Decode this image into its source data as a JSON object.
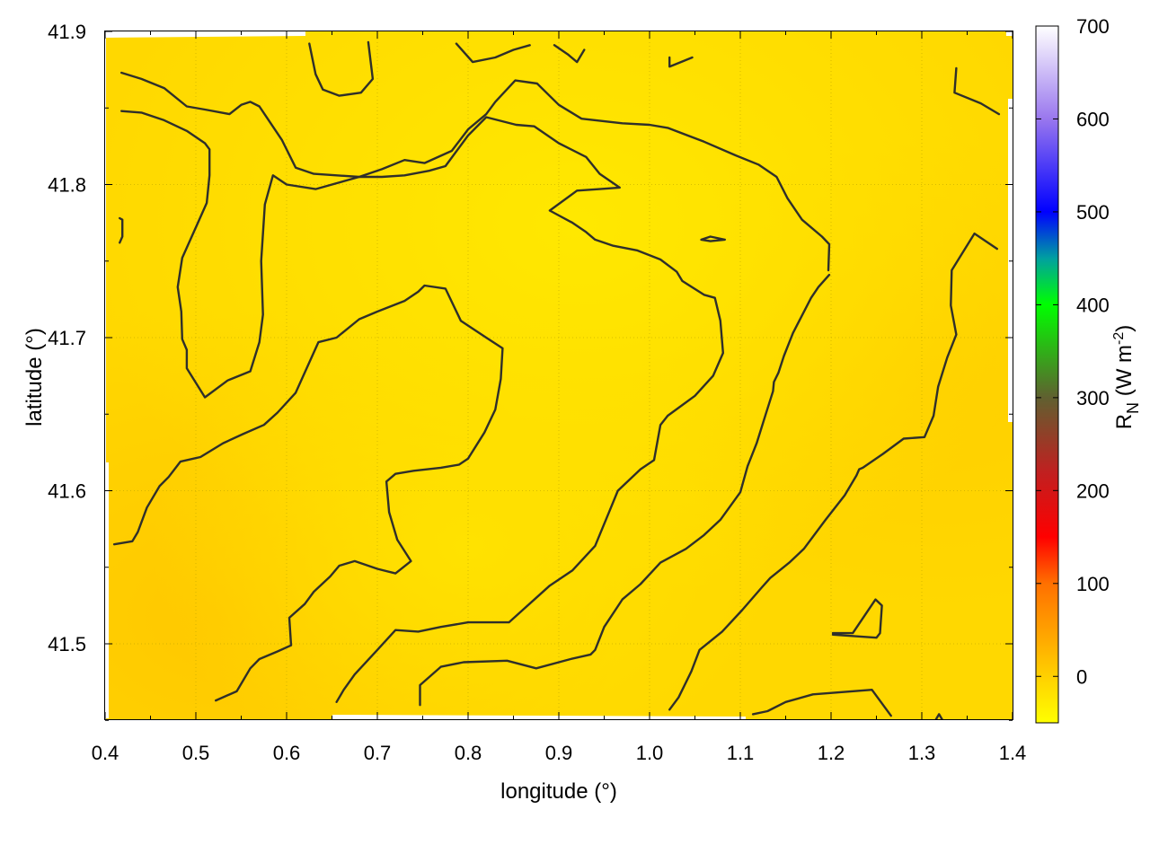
{
  "chart_data": {
    "type": "heatmap",
    "xlabel": "longitude (°)",
    "ylabel": "latitude (°)",
    "xlim": [
      0.4,
      1.4
    ],
    "ylim": [
      41.45,
      41.9
    ],
    "x_ticks": [
      "0.4",
      "0.5",
      "0.6",
      "0.7",
      "0.8",
      "0.9",
      "1.0",
      "1.1",
      "1.2",
      "1.3",
      "1.4"
    ],
    "y_ticks": [
      "41.5",
      "41.6",
      "41.7",
      "41.8",
      "41.9"
    ],
    "grid": true,
    "colorbar": {
      "label_main": "R",
      "label_sub": "N",
      "label_units_open": " (W m",
      "label_units_exp": "-2",
      "label_units_close": ")",
      "range": [
        -50,
        700
      ],
      "ticks": [
        "0",
        "100",
        "200",
        "300",
        "400",
        "500",
        "600",
        "700"
      ],
      "colors": [
        {
          "v": -50,
          "c": "#ffff00"
        },
        {
          "v": 0,
          "c": "#ffd000"
        },
        {
          "v": 50,
          "c": "#ffa000"
        },
        {
          "v": 100,
          "c": "#ff7000"
        },
        {
          "v": 150,
          "c": "#ff0000"
        },
        {
          "v": 220,
          "c": "#c02020"
        },
        {
          "v": 300,
          "c": "#606030"
        },
        {
          "v": 400,
          "c": "#00ff00"
        },
        {
          "v": 450,
          "c": "#00a0a0"
        },
        {
          "v": 500,
          "c": "#0000ff"
        },
        {
          "v": 600,
          "c": "#9977ee"
        },
        {
          "v": 700,
          "c": "#ffffff"
        }
      ]
    },
    "field_colors": {
      "high": "#ffe800",
      "low": "#ffd000"
    },
    "contours": [
      [
        [
          0.418,
          41.873
        ],
        [
          0.44,
          41.869
        ],
        [
          0.465,
          41.863
        ],
        [
          0.49,
          41.851
        ],
        [
          0.51,
          41.849
        ],
        [
          0.537,
          41.846
        ],
        [
          0.55,
          41.852
        ],
        [
          0.56,
          41.854
        ],
        [
          0.57,
          41.851
        ],
        [
          0.595,
          41.829
        ],
        [
          0.61,
          41.811
        ],
        [
          0.63,
          41.807
        ],
        [
          0.68,
          41.805
        ],
        [
          0.705,
          41.81
        ],
        [
          0.73,
          41.816
        ],
        [
          0.752,
          41.814
        ],
        [
          0.782,
          41.822
        ],
        [
          0.8,
          41.836
        ],
        [
          0.82,
          41.846
        ],
        [
          0.83,
          41.854
        ],
        [
          0.852,
          41.868
        ],
        [
          0.876,
          41.866
        ],
        [
          0.9,
          41.852
        ],
        [
          0.925,
          41.843
        ],
        [
          0.97,
          41.84
        ],
        [
          1.0,
          41.839
        ],
        [
          1.02,
          41.837
        ],
        [
          1.06,
          41.828
        ],
        [
          1.095,
          41.819
        ],
        [
          1.12,
          41.813
        ],
        [
          1.14,
          41.805
        ],
        [
          1.152,
          41.791
        ],
        [
          1.168,
          41.777
        ],
        [
          1.19,
          41.766
        ],
        [
          1.198,
          41.761
        ],
        [
          1.197,
          41.744
        ]
      ],
      [
        [
          0.418,
          41.848
        ],
        [
          0.44,
          41.847
        ],
        [
          0.465,
          41.842
        ],
        [
          0.49,
          41.835
        ],
        [
          0.51,
          41.827
        ],
        [
          0.515,
          41.823
        ],
        [
          0.515,
          41.806
        ],
        [
          0.512,
          41.788
        ],
        [
          0.5,
          41.772
        ],
        [
          0.485,
          41.752
        ],
        [
          0.48,
          41.733
        ],
        [
          0.484,
          41.717
        ],
        [
          0.485,
          41.699
        ],
        [
          0.49,
          41.692
        ],
        [
          0.49,
          41.68
        ],
        [
          0.51,
          41.661
        ],
        [
          0.535,
          41.672
        ],
        [
          0.56,
          41.678
        ],
        [
          0.57,
          41.697
        ],
        [
          0.574,
          41.715
        ],
        [
          0.572,
          41.75
        ],
        [
          0.576,
          41.787
        ],
        [
          0.585,
          41.806
        ],
        [
          0.6,
          41.8
        ],
        [
          0.632,
          41.797
        ],
        [
          0.68,
          41.805
        ],
        [
          0.705,
          41.805
        ],
        [
          0.73,
          41.806
        ],
        [
          0.757,
          41.809
        ],
        [
          0.775,
          41.812
        ],
        [
          0.8,
          41.832
        ],
        [
          0.82,
          41.844
        ],
        [
          0.853,
          41.839
        ],
        [
          0.873,
          41.838
        ],
        [
          0.9,
          41.827
        ],
        [
          0.93,
          41.818
        ],
        [
          0.945,
          41.807
        ],
        [
          0.967,
          41.798
        ],
        [
          0.945,
          41.797
        ],
        [
          0.92,
          41.796
        ],
        [
          0.89,
          41.783
        ],
        [
          0.915,
          41.775
        ],
        [
          0.93,
          41.769
        ],
        [
          0.94,
          41.764
        ],
        [
          0.96,
          41.76
        ],
        [
          0.986,
          41.757
        ],
        [
          1.012,
          41.751
        ],
        [
          1.03,
          41.743
        ],
        [
          1.036,
          41.737
        ],
        [
          1.06,
          41.728
        ],
        [
          1.072,
          41.726
        ],
        [
          1.078,
          41.711
        ],
        [
          1.081,
          41.69
        ],
        [
          1.07,
          41.675
        ],
        [
          1.05,
          41.662
        ],
        [
          1.02,
          41.649
        ],
        [
          1.012,
          41.643
        ],
        [
          1.005,
          41.62
        ],
        [
          0.99,
          41.614
        ],
        [
          0.965,
          41.6
        ],
        [
          0.956,
          41.587
        ],
        [
          0.94,
          41.564
        ],
        [
          0.915,
          41.548
        ],
        [
          0.89,
          41.538
        ],
        [
          0.875,
          41.53
        ],
        [
          0.86,
          41.522
        ],
        [
          0.845,
          41.514
        ],
        [
          0.8,
          41.514
        ],
        [
          0.77,
          41.511
        ],
        [
          0.745,
          41.508
        ],
        [
          0.72,
          41.509
        ],
        [
          0.7,
          41.496
        ],
        [
          0.675,
          41.48
        ],
        [
          0.663,
          41.47
        ],
        [
          0.655,
          41.462
        ]
      ],
      [
        [
          0.41,
          41.565
        ],
        [
          0.43,
          41.567
        ],
        [
          0.436,
          41.573
        ],
        [
          0.446,
          41.589
        ],
        [
          0.46,
          41.603
        ],
        [
          0.47,
          41.609
        ],
        [
          0.483,
          41.619
        ],
        [
          0.505,
          41.622
        ],
        [
          0.53,
          41.631
        ],
        [
          0.552,
          41.637
        ],
        [
          0.575,
          41.643
        ],
        [
          0.59,
          41.651
        ],
        [
          0.61,
          41.664
        ],
        [
          0.635,
          41.697
        ],
        [
          0.655,
          41.7
        ],
        [
          0.68,
          41.712
        ],
        [
          0.7,
          41.717
        ],
        [
          0.73,
          41.724
        ],
        [
          0.745,
          41.73
        ],
        [
          0.752,
          41.734
        ],
        [
          0.775,
          41.732
        ],
        [
          0.792,
          41.711
        ],
        [
          0.82,
          41.7
        ],
        [
          0.838,
          41.693
        ],
        [
          0.836,
          41.673
        ],
        [
          0.83,
          41.653
        ],
        [
          0.818,
          41.638
        ],
        [
          0.8,
          41.621
        ],
        [
          0.79,
          41.617
        ],
        [
          0.77,
          41.615
        ],
        [
          0.74,
          41.613
        ],
        [
          0.72,
          41.611
        ],
        [
          0.71,
          41.606
        ],
        [
          0.713,
          41.586
        ],
        [
          0.722,
          41.568
        ],
        [
          0.737,
          41.554
        ],
        [
          0.72,
          41.546
        ],
        [
          0.7,
          41.549
        ],
        [
          0.675,
          41.554
        ],
        [
          0.658,
          41.551
        ],
        [
          0.648,
          41.544
        ],
        [
          0.63,
          41.534
        ],
        [
          0.62,
          41.526
        ],
        [
          0.603,
          41.517
        ],
        [
          0.605,
          41.499
        ],
        [
          0.59,
          41.495
        ],
        [
          0.57,
          41.49
        ],
        [
          0.56,
          41.484
        ],
        [
          0.545,
          41.469
        ],
        [
          0.522,
          41.463
        ]
      ],
      [
        [
          0.747,
          41.46
        ],
        [
          0.747,
          41.473
        ],
        [
          0.77,
          41.485
        ],
        [
          0.795,
          41.488
        ],
        [
          0.843,
          41.489
        ],
        [
          0.875,
          41.484
        ],
        [
          0.913,
          41.49
        ],
        [
          0.935,
          41.493
        ],
        [
          0.94,
          41.496
        ],
        [
          0.95,
          41.511
        ],
        [
          0.97,
          41.529
        ],
        [
          0.99,
          41.539
        ],
        [
          1.012,
          41.553
        ],
        [
          1.04,
          41.562
        ],
        [
          1.06,
          41.571
        ],
        [
          1.078,
          41.581
        ],
        [
          1.1,
          41.599
        ],
        [
          1.108,
          41.616
        ],
        [
          1.118,
          41.631
        ],
        [
          1.128,
          41.65
        ],
        [
          1.136,
          41.665
        ],
        [
          1.137,
          41.671
        ],
        [
          1.142,
          41.677
        ],
        [
          1.148,
          41.688
        ],
        [
          1.158,
          41.703
        ],
        [
          1.178,
          41.726
        ],
        [
          1.186,
          41.733
        ],
        [
          1.198,
          41.741
        ]
      ],
      [
        [
          1.022,
          41.457
        ],
        [
          1.032,
          41.465
        ],
        [
          1.046,
          41.482
        ],
        [
          1.055,
          41.496
        ],
        [
          1.08,
          41.508
        ],
        [
          1.102,
          41.522
        ],
        [
          1.124,
          41.537
        ],
        [
          1.133,
          41.543
        ],
        [
          1.154,
          41.553
        ],
        [
          1.17,
          41.562
        ],
        [
          1.194,
          41.581
        ],
        [
          1.215,
          41.597
        ],
        [
          1.228,
          41.61
        ],
        [
          1.231,
          41.614
        ],
        [
          1.235,
          41.615
        ],
        [
          1.257,
          41.624
        ],
        [
          1.28,
          41.634
        ],
        [
          1.303,
          41.635
        ],
        [
          1.313,
          41.649
        ],
        [
          1.318,
          41.668
        ],
        [
          1.328,
          41.687
        ],
        [
          1.338,
          41.702
        ],
        [
          1.332,
          41.721
        ],
        [
          1.333,
          41.744
        ],
        [
          1.358,
          41.768
        ],
        [
          1.383,
          41.758
        ]
      ],
      [
        [
          1.114,
          41.454
        ],
        [
          1.13,
          41.456
        ],
        [
          1.15,
          41.462
        ],
        [
          1.18,
          41.467
        ],
        [
          1.245,
          41.47
        ],
        [
          1.266,
          41.453
        ]
      ],
      [
        [
          1.202,
          41.506
        ],
        [
          1.25,
          41.504
        ],
        [
          1.254,
          41.507
        ],
        [
          1.256,
          41.525
        ],
        [
          1.249,
          41.529
        ],
        [
          1.224,
          41.507
        ],
        [
          1.202,
          41.507
        ]
      ],
      [
        [
          0.625,
          41.892
        ],
        [
          0.632,
          41.872
        ],
        [
          0.64,
          41.862
        ],
        [
          0.658,
          41.858
        ],
        [
          0.682,
          41.86
        ],
        [
          0.695,
          41.869
        ],
        [
          0.69,
          41.893
        ]
      ],
      [
        [
          0.787,
          41.892
        ],
        [
          0.805,
          41.88
        ],
        [
          0.83,
          41.883
        ],
        [
          0.85,
          41.888
        ],
        [
          0.868,
          41.891
        ]
      ],
      [
        [
          0.895,
          41.891
        ],
        [
          0.91,
          41.885
        ],
        [
          0.92,
          41.88
        ],
        [
          0.928,
          41.888
        ]
      ],
      [
        [
          1.022,
          41.883
        ],
        [
          1.022,
          41.877
        ],
        [
          1.047,
          41.883
        ]
      ],
      [
        [
          1.338,
          41.876
        ],
        [
          1.336,
          41.86
        ],
        [
          1.365,
          41.853
        ],
        [
          1.385,
          41.846
        ]
      ],
      [
        [
          0.416,
          41.778
        ],
        [
          0.419,
          41.777
        ],
        [
          0.419,
          41.766
        ],
        [
          0.416,
          41.762
        ]
      ],
      [
        [
          1.057,
          41.764
        ],
        [
          1.067,
          41.766
        ],
        [
          1.083,
          41.764
        ],
        [
          1.067,
          41.763
        ],
        [
          1.057,
          41.764
        ]
      ],
      [
        [
          1.315,
          41.45
        ],
        [
          1.319,
          41.454
        ],
        [
          1.323,
          41.45
        ]
      ]
    ]
  }
}
